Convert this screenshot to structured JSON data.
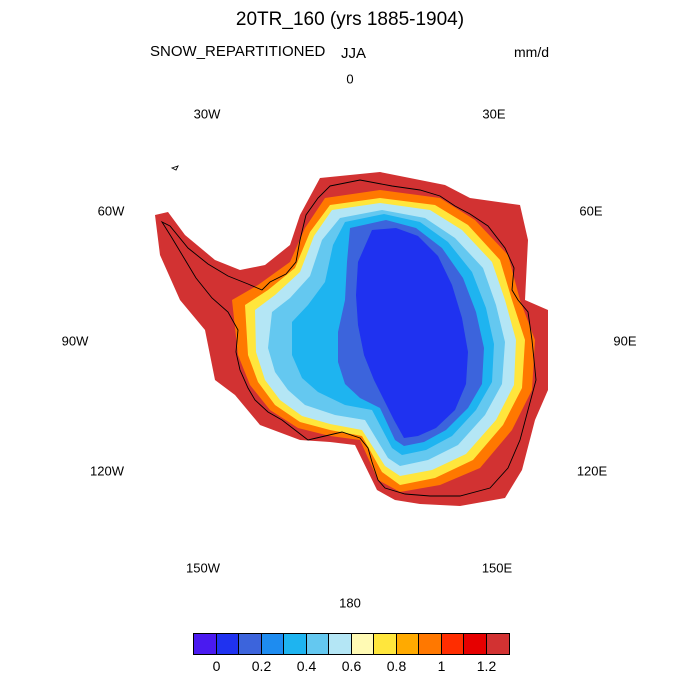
{
  "title": "20TR_160 (yrs 1885-1904)",
  "variable": "SNOW_REPARTITIONED",
  "season": "JJA",
  "units": "mm/d",
  "longitude_labels": [
    "0",
    "30E",
    "60E",
    "90E",
    "120E",
    "150E",
    "180",
    "150W",
    "120W",
    "90W",
    "60W",
    "30W"
  ],
  "colorbar": {
    "colors": [
      "#4a1af0",
      "#1f32f0",
      "#3c64dc",
      "#1e8cf0",
      "#1eb4f0",
      "#64c8f0",
      "#b4e6f5",
      "#fffab4",
      "#ffe63c",
      "#ffaa00",
      "#ff7800",
      "#ff2d00",
      "#e60000",
      "#d23232"
    ],
    "tick_labels": [
      "0",
      "0.2",
      "0.4",
      "0.6",
      "0.8",
      "1",
      "1.2"
    ]
  },
  "map_colors": {
    "outer_ring": "#d23232",
    "orange": "#ff7800",
    "yellow": "#ffe63c",
    "pale": "#b4e6f5",
    "light_blue": "#64c8f0",
    "mid_blue": "#1eb4f0",
    "blue": "#3c64dc",
    "core": "#1f32f0",
    "coast": "#000000"
  }
}
